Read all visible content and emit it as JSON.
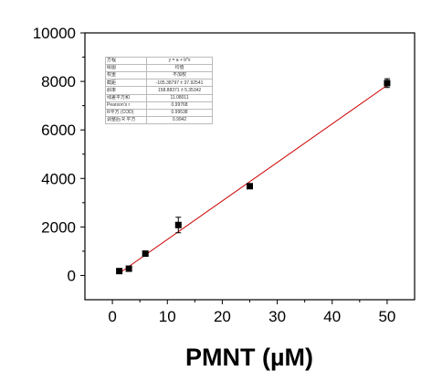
{
  "chart_data": {
    "type": "scatter",
    "title": "",
    "xlabel": "PMNT (µM)",
    "ylabel": "",
    "xlim": [
      -5,
      55
    ],
    "ylim": [
      -1000,
      10000
    ],
    "x_ticks": [
      0,
      10,
      20,
      30,
      40,
      50
    ],
    "x_tick_labels": [
      "0",
      "10",
      "20",
      "30",
      "40",
      "50"
    ],
    "y_ticks": [
      0,
      2000,
      4000,
      6000,
      8000,
      10000
    ],
    "y_tick_labels": [
      "0",
      "2000",
      "4000",
      "6000",
      "8000",
      "10000"
    ],
    "grid": false,
    "series": [
      {
        "marker": "square",
        "color": "#000000",
        "points": [
          {
            "x": 1.25,
            "y": 180,
            "err": 40
          },
          {
            "x": 3,
            "y": 280,
            "err": 40
          },
          {
            "x": 6,
            "y": 900,
            "err": 60
          },
          {
            "x": 12,
            "y": 2080,
            "err": 320
          },
          {
            "x": 25,
            "y": 3680,
            "err": 80
          },
          {
            "x": 50,
            "y": 7930,
            "err": 180
          }
        ]
      }
    ],
    "fit_line": {
      "color": "#cc0000",
      "intercept": -105.38797,
      "slope": 158.88371,
      "x_range": [
        1.25,
        50
      ]
    },
    "fit_table": [
      {
        "label": "方程",
        "value": "y = a + b*x"
      },
      {
        "label": "绘图",
        "value": "均值"
      },
      {
        "label": "权重",
        "value": "不加权"
      },
      {
        "label": "截距",
        "value": "-105.38797 ± 37.92541"
      },
      {
        "label": "斜率",
        "value": "158.88371 ± 5.35342"
      },
      {
        "label": "残差平方和",
        "value": "11.08011"
      },
      {
        "label": "Pearson's r",
        "value": "0.99768"
      },
      {
        "label": "R平方 (COD)",
        "value": "0.99538"
      },
      {
        "label": "调整后 R 平方",
        "value": "0.9942"
      }
    ]
  }
}
